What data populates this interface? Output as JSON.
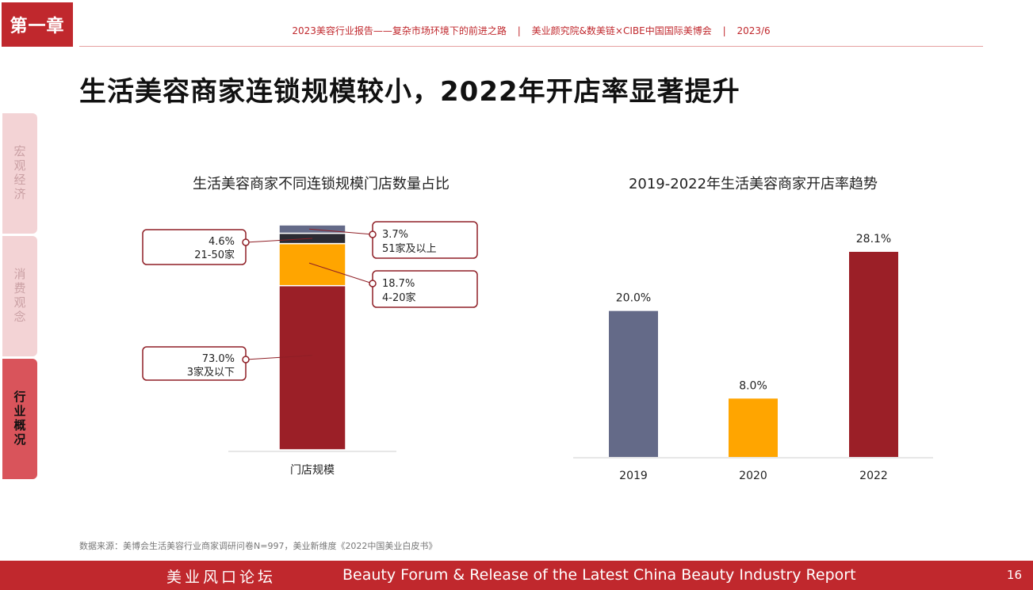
{
  "chapter": "第一章",
  "header": {
    "report_title": "2023美容行业报告——复杂市场环境下的前进之路",
    "separator": "|",
    "publishers": "美业颜究院&数美链×CIBE中国国际美博会",
    "date": "2023/6"
  },
  "page_title": "生活美容商家连锁规模较小，2022年开店率显著提升",
  "sidebar": {
    "items": [
      {
        "label": "宏观经济",
        "active": false
      },
      {
        "label": "消费观念",
        "active": false
      },
      {
        "label": "行业概况",
        "active": true
      }
    ]
  },
  "chart_data": [
    {
      "type": "bar",
      "stacked": true,
      "title": "生活美容商家不同连锁规模门店数量占比",
      "categories": [
        "门店规模"
      ],
      "series": [
        {
          "name": "3家及以下",
          "value": 73.0,
          "label": "73.0%",
          "color": "#9b1f27"
        },
        {
          "name": "4-20家",
          "value": 18.7,
          "label": "18.7%",
          "color": "#ffa500"
        },
        {
          "name": "21-50家",
          "value": 4.6,
          "label": "4.6%",
          "color": "#2b2b33"
        },
        {
          "name": "51家及以上",
          "value": 3.7,
          "label": "3.7%",
          "color": "#646a88"
        }
      ],
      "ylim": [
        0,
        100
      ]
    },
    {
      "type": "bar",
      "title": "2019-2022年生活美容商家开店率趋势",
      "categories": [
        "2019",
        "2020",
        "2022"
      ],
      "values": [
        20.0,
        8.0,
        28.1
      ],
      "labels": [
        "20.0%",
        "8.0%",
        "28.1%"
      ],
      "colors": [
        "#646a88",
        "#ffa500",
        "#9b1f27"
      ],
      "ylim": [
        0,
        30
      ]
    }
  ],
  "source": "数据来源：美博会生活美容行业商家调研问卷N=997，美业新维度《2022中国美业白皮书》",
  "footer": {
    "cn": "美业风口论坛",
    "en": "Beauty Forum & Release of the Latest China Beauty Industry Report",
    "page": "16"
  }
}
